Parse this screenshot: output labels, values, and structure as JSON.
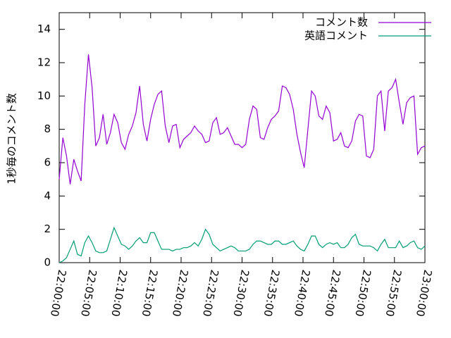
{
  "chart_data": {
    "type": "line",
    "ylabel": "1秒毎のコメント数",
    "x": [
      "22:00:00",
      "22:00:36",
      "22:01:12",
      "22:01:48",
      "22:02:24",
      "22:03:00",
      "22:03:36",
      "22:04:12",
      "22:04:48",
      "22:05:24",
      "22:06:00",
      "22:06:36",
      "22:07:12",
      "22:07:48",
      "22:08:24",
      "22:09:00",
      "22:09:36",
      "22:10:12",
      "22:10:48",
      "22:11:24",
      "22:12:00",
      "22:12:36",
      "22:13:12",
      "22:13:48",
      "22:14:24",
      "22:15:00",
      "22:15:36",
      "22:16:12",
      "22:16:48",
      "22:17:24",
      "22:18:00",
      "22:18:36",
      "22:19:12",
      "22:19:48",
      "22:20:24",
      "22:21:00",
      "22:21:36",
      "22:22:12",
      "22:22:48",
      "22:23:24",
      "22:24:00",
      "22:24:36",
      "22:25:12",
      "22:25:48",
      "22:26:24",
      "22:27:00",
      "22:27:36",
      "22:28:12",
      "22:28:48",
      "22:29:24",
      "22:30:00",
      "22:30:36",
      "22:31:12",
      "22:31:48",
      "22:32:24",
      "22:33:00",
      "22:33:36",
      "22:34:12",
      "22:34:48",
      "22:35:24",
      "22:36:00",
      "22:36:36",
      "22:37:12",
      "22:37:48",
      "22:38:24",
      "22:39:00",
      "22:39:36",
      "22:40:12",
      "22:40:48",
      "22:41:24",
      "22:42:00",
      "22:42:36",
      "22:43:12",
      "22:43:48",
      "22:44:24",
      "22:45:00",
      "22:45:36",
      "22:46:12",
      "22:46:48",
      "22:47:24",
      "22:48:00",
      "22:48:36",
      "22:49:12",
      "22:49:48",
      "22:50:24",
      "22:51:00",
      "22:51:36",
      "22:52:12",
      "22:52:48",
      "22:53:24",
      "22:54:00",
      "22:54:36",
      "22:55:12",
      "22:55:48",
      "22:56:24",
      "22:57:00",
      "22:57:36",
      "22:58:12",
      "22:58:48",
      "22:59:24",
      "23:00:00"
    ],
    "series": [
      {
        "name": "コメント数",
        "color": "#9400d3",
        "values": [
          5.0,
          7.5,
          6.4,
          4.7,
          6.2,
          5.5,
          4.9,
          9.5,
          12.5,
          10.5,
          7.0,
          7.5,
          8.9,
          7.1,
          7.8,
          8.9,
          8.4,
          7.2,
          6.8,
          7.7,
          8.2,
          9.0,
          10.6,
          8.3,
          7.3,
          8.6,
          9.5,
          10.1,
          10.3,
          8.2,
          7.2,
          8.2,
          8.3,
          6.9,
          7.4,
          7.6,
          7.8,
          8.2,
          7.9,
          7.7,
          7.2,
          7.3,
          8.4,
          8.7,
          7.7,
          7.8,
          8.1,
          7.6,
          7.1,
          7.1,
          6.9,
          7.1,
          8.6,
          9.4,
          9.2,
          7.5,
          7.4,
          8.1,
          8.6,
          8.8,
          9.1,
          10.6,
          10.5,
          10.1,
          9.2,
          7.7,
          6.6,
          5.7,
          8.0,
          10.3,
          10.0,
          8.8,
          8.6,
          9.4,
          9.0,
          7.3,
          7.4,
          7.8,
          7.0,
          6.9,
          7.3,
          8.5,
          8.9,
          8.8,
          6.4,
          6.3,
          6.8,
          10.0,
          10.3,
          7.9,
          10.3,
          10.5,
          11.0,
          9.6,
          8.3,
          9.6,
          9.9,
          10.0,
          6.5,
          6.9,
          7.0
        ]
      },
      {
        "name": "英語コメント",
        "color": "#009e73",
        "values": [
          0.0,
          0.1,
          0.3,
          0.8,
          1.3,
          0.5,
          0.4,
          1.2,
          1.6,
          1.2,
          0.7,
          0.6,
          0.6,
          0.7,
          1.4,
          2.1,
          1.6,
          1.1,
          1.0,
          0.8,
          1.0,
          1.3,
          1.5,
          1.2,
          1.2,
          1.8,
          1.8,
          1.3,
          0.8,
          0.8,
          0.8,
          0.7,
          0.8,
          0.8,
          0.9,
          0.9,
          1.0,
          1.2,
          1.0,
          1.4,
          2.0,
          1.7,
          1.1,
          0.9,
          0.7,
          0.8,
          0.9,
          1.0,
          0.9,
          0.7,
          0.7,
          0.7,
          0.8,
          1.1,
          1.3,
          1.3,
          1.2,
          1.1,
          1.1,
          1.3,
          1.3,
          1.1,
          1.1,
          1.2,
          1.3,
          1.0,
          0.8,
          0.7,
          1.1,
          1.6,
          1.6,
          1.1,
          0.9,
          1.1,
          1.2,
          1.1,
          1.2,
          0.9,
          0.9,
          1.1,
          1.5,
          1.7,
          1.1,
          1.0,
          1.0,
          1.0,
          0.9,
          0.7,
          1.1,
          1.4,
          0.9,
          0.9,
          0.9,
          1.3,
          0.9,
          1.0,
          1.2,
          1.3,
          0.9,
          0.8,
          1.0
        ]
      }
    ],
    "xlim": [
      "22:00:00",
      "23:00:00"
    ],
    "xticks": [
      "22:00:00",
      "22:05:00",
      "22:10:00",
      "22:15:00",
      "22:20:00",
      "22:25:00",
      "22:30:00",
      "22:35:00",
      "22:40:00",
      "22:45:00",
      "22:50:00",
      "22:55:00",
      "23:00:00"
    ],
    "ylim": [
      0,
      15
    ],
    "yticks": [
      0,
      2,
      4,
      6,
      8,
      10,
      12,
      14
    ],
    "legend": "top-right"
  }
}
